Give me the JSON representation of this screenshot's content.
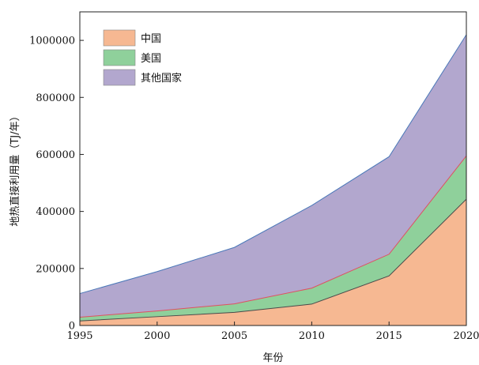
{
  "chart_data": {
    "type": "area",
    "stacked": true,
    "title": "",
    "xlabel": "年份",
    "ylabel": "地热直接利用量（TJ/年）",
    "x": [
      1995,
      2000,
      2005,
      2010,
      2015,
      2020
    ],
    "xlim": [
      1995,
      2020
    ],
    "ylim": [
      0,
      1100000
    ],
    "x_ticks": [
      "1995",
      "2000",
      "2005",
      "2010",
      "2015",
      "2020"
    ],
    "y_ticks": [
      "0",
      "200000",
      "400000",
      "600000",
      "800000",
      "1000000"
    ],
    "legend_position": "top-left",
    "grid": false,
    "series": [
      {
        "name": "中国",
        "values": [
          16000,
          31000,
          46000,
          75000,
          174000,
          443000
        ],
        "color": "#f6b892",
        "line_color": "#4a4a4a"
      },
      {
        "name": "美国",
        "values": [
          13000,
          20000,
          30000,
          56000,
          76000,
          152000
        ],
        "color": "#8fd09b",
        "line_color": "#e05060"
      },
      {
        "name": "其他国家",
        "values": [
          83000,
          138000,
          198000,
          290000,
          342000,
          425000
        ],
        "color": "#b2a7ce",
        "line_color": "#4a78b8"
      }
    ]
  }
}
